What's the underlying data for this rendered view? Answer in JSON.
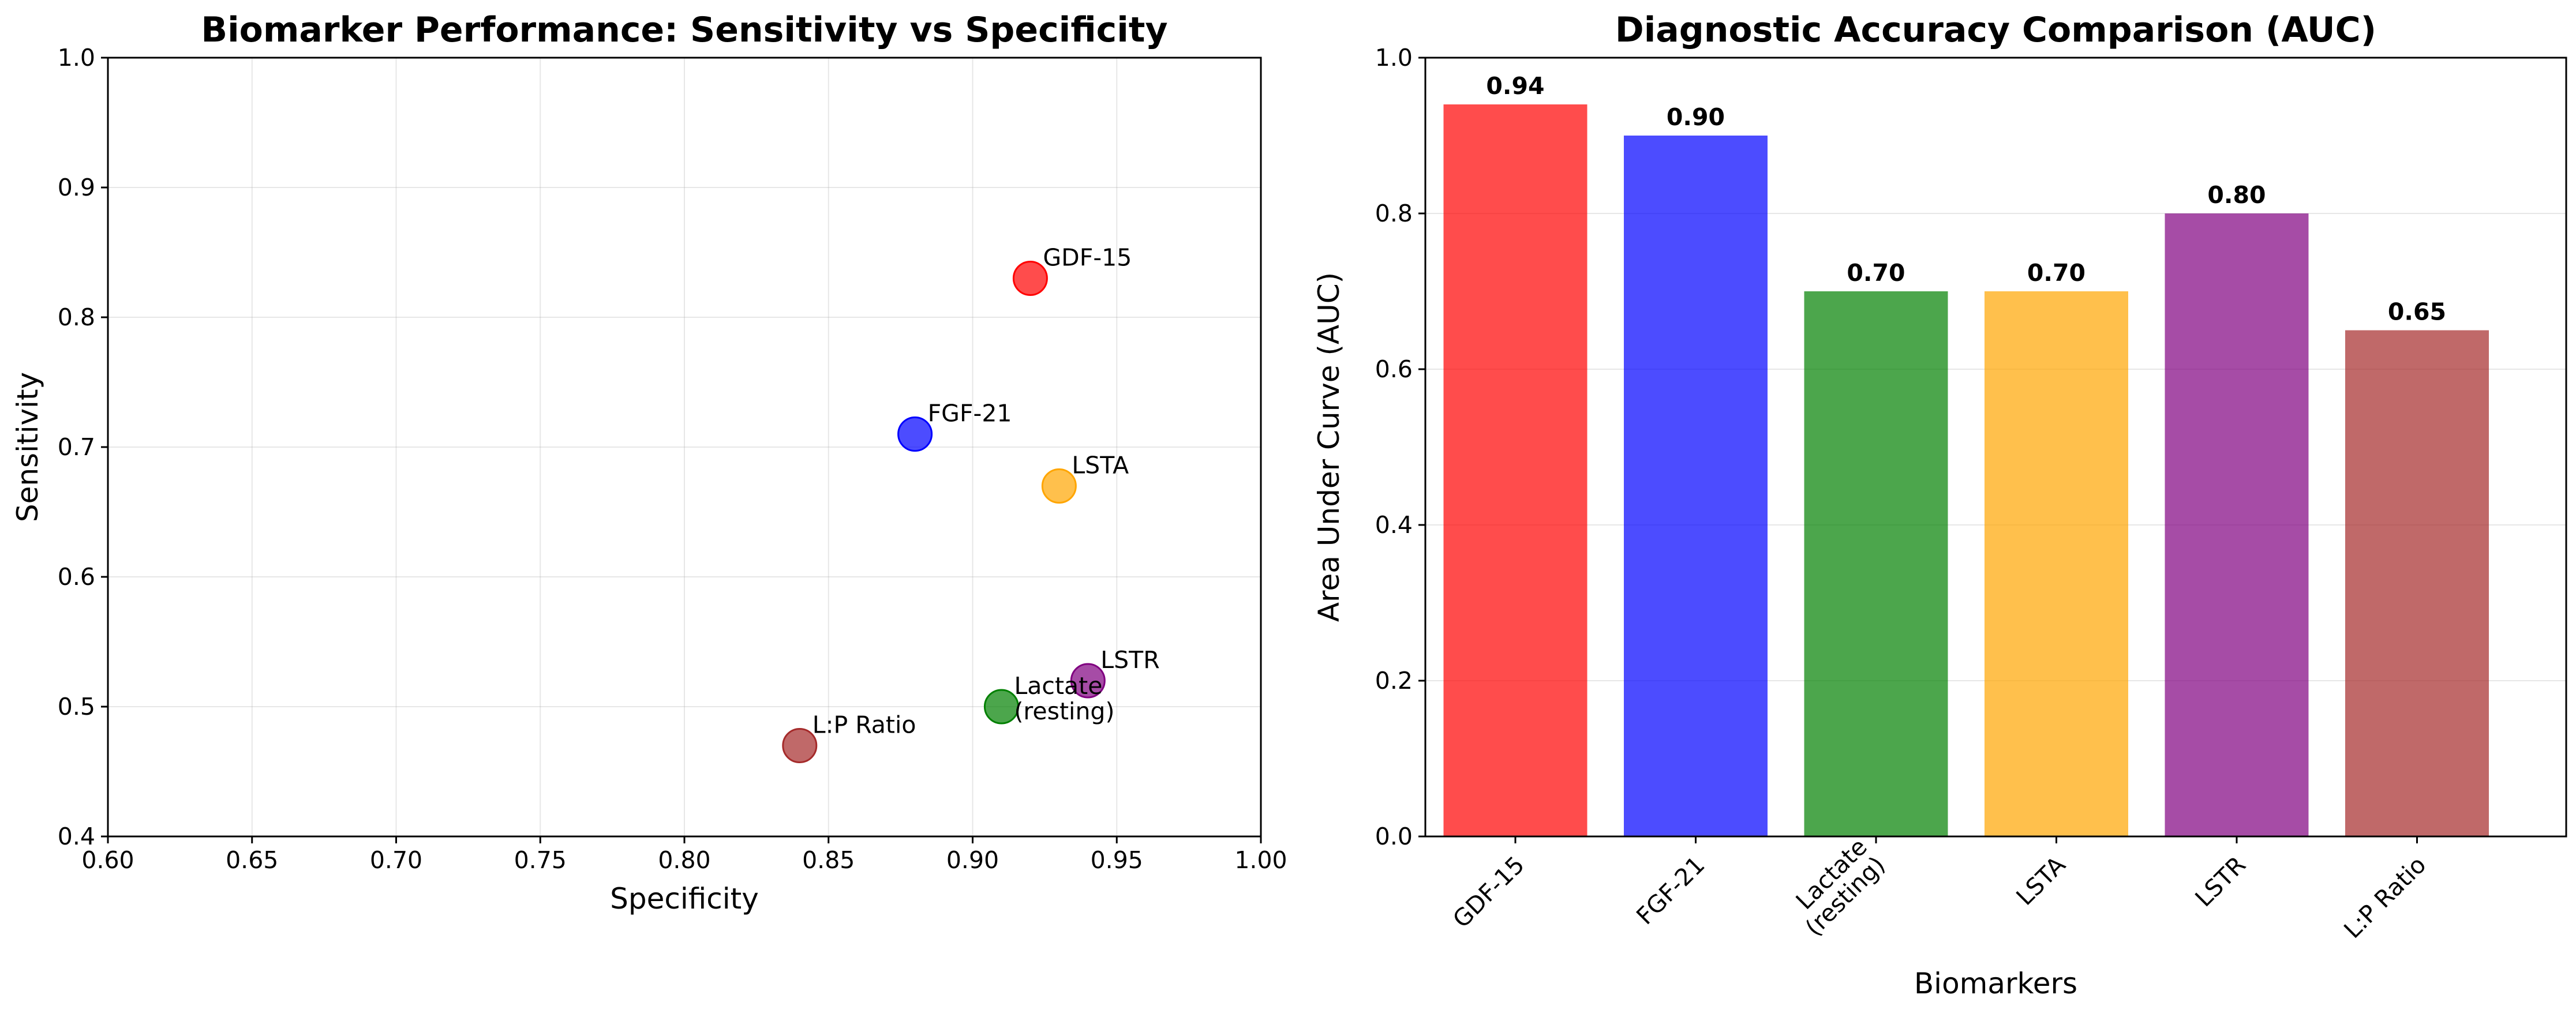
{
  "colors": {
    "gdf15": "#ff0000",
    "fgf21": "#0000ff",
    "lactate": "#008000",
    "lsta": "#ffa500",
    "lstr": "#800080",
    "lp_ratio": "#a52a2a"
  },
  "chart_data": [
    {
      "type": "scatter",
      "title": "Biomarker Performance: Sensitivity vs Specificity",
      "xlabel": "Specificity",
      "ylabel": "Sensitivity",
      "xlim": [
        0.6,
        1.0
      ],
      "ylim": [
        0.4,
        1.0
      ],
      "xticks": [
        "0.60",
        "0.65",
        "0.70",
        "0.75",
        "0.80",
        "0.85",
        "0.90",
        "0.95",
        "1.00"
      ],
      "yticks": [
        "0.4",
        "0.5",
        "0.6",
        "0.7",
        "0.8",
        "0.9",
        "1.0"
      ],
      "grid": true,
      "points": [
        {
          "label": "GDF-15",
          "label_lines": [
            "GDF-15"
          ],
          "x": 0.92,
          "y": 0.83,
          "color": "#ff0000"
        },
        {
          "label": "FGF-21",
          "label_lines": [
            "FGF-21"
          ],
          "x": 0.88,
          "y": 0.71,
          "color": "#0000ff"
        },
        {
          "label": "Lactate (resting)",
          "label_lines": [
            "Lactate",
            "(resting)"
          ],
          "x": 0.91,
          "y": 0.5,
          "color": "#008000"
        },
        {
          "label": "LSTA",
          "label_lines": [
            "LSTA"
          ],
          "x": 0.93,
          "y": 0.67,
          "color": "#ffa500"
        },
        {
          "label": "LSTR",
          "label_lines": [
            "LSTR"
          ],
          "x": 0.94,
          "y": 0.52,
          "color": "#800080"
        },
        {
          "label": "L:P Ratio",
          "label_lines": [
            "L:P Ratio"
          ],
          "x": 0.84,
          "y": 0.47,
          "color": "#a52a2a"
        }
      ]
    },
    {
      "type": "bar",
      "title": "Diagnostic Accuracy Comparison (AUC)",
      "xlabel": "Biomarkers",
      "ylabel": "Area Under Curve (AUC)",
      "ylim": [
        0.0,
        1.0
      ],
      "yticks": [
        "0.0",
        "0.2",
        "0.4",
        "0.6",
        "0.8",
        "1.0"
      ],
      "grid": true,
      "categories": [
        "GDF-15",
        "FGF-21",
        "Lactate (resting)",
        "LSTA",
        "LSTR",
        "L:P Ratio"
      ],
      "category_lines": [
        [
          "GDF-15"
        ],
        [
          "FGF-21"
        ],
        [
          "Lactate",
          "(resting)"
        ],
        [
          "LSTA"
        ],
        [
          "LSTR"
        ],
        [
          "L:P Ratio"
        ]
      ],
      "values": [
        0.94,
        0.9,
        0.7,
        0.7,
        0.8,
        0.65
      ],
      "value_labels": [
        "0.94",
        "0.90",
        "0.70",
        "0.70",
        "0.80",
        "0.65"
      ],
      "bar_colors": [
        "#ff0000",
        "#0000ff",
        "#008000",
        "#ffa500",
        "#800080",
        "#a52a2a"
      ]
    }
  ]
}
